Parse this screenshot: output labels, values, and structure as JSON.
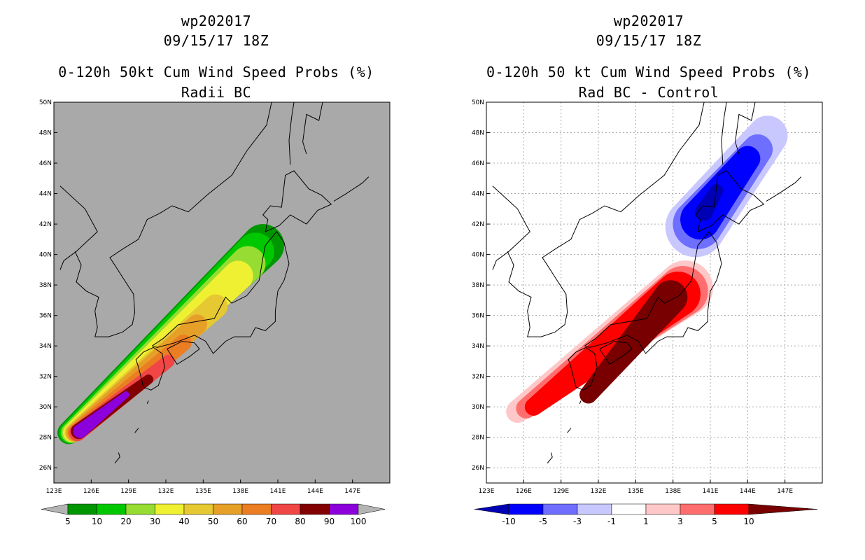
{
  "chart_data": [
    {
      "type": "heatmap",
      "storm_id": "wp202017",
      "datetime": "09/15/17 18Z",
      "title": "0-120h 50kt Cum Wind Speed Probs (%)",
      "subtitle": "Radii BC",
      "background": "#a9a9a9",
      "lon_range": [
        123,
        150
      ],
      "lat_range": [
        25,
        50
      ],
      "x_ticks": [
        "123E",
        "126E",
        "129E",
        "132E",
        "135E",
        "138E",
        "141E",
        "144E",
        "147E"
      ],
      "y_ticks": [
        "26N",
        "28N",
        "30N",
        "32N",
        "34N",
        "36N",
        "38N",
        "40N",
        "42N",
        "44N",
        "46N",
        "48N",
        "50N"
      ],
      "gridlines": false,
      "levels": [
        5,
        10,
        20,
        30,
        40,
        50,
        60,
        70,
        80,
        90,
        100
      ],
      "colors": [
        "#009600",
        "#00c800",
        "#96dc32",
        "#f0f032",
        "#e6c832",
        "#e6a028",
        "#eb7d23",
        "#f04646",
        "#820000",
        "#8c00dc"
      ],
      "contours": [
        {
          "level": 5,
          "color": "#009600",
          "p0": [
            124.2,
            28.3
          ],
          "p1": [
            139.8,
            40.6
          ],
          "w0": 0.9,
          "w1": 1.7
        },
        {
          "level": 10,
          "color": "#00c800",
          "p0": [
            124.3,
            28.3
          ],
          "p1": [
            139.2,
            40.2
          ],
          "w0": 0.85,
          "w1": 1.5
        },
        {
          "level": 20,
          "color": "#96dc32",
          "p0": [
            124.4,
            28.3
          ],
          "p1": [
            138.6,
            39.4
          ],
          "w0": 0.8,
          "w1": 1.4
        },
        {
          "level": 30,
          "color": "#f0f032",
          "p0": [
            124.5,
            28.3
          ],
          "p1": [
            137.8,
            38.6
          ],
          "w0": 0.75,
          "w1": 1.2
        },
        {
          "level": 40,
          "color": "#e6c832",
          "p0": [
            124.6,
            28.3
          ],
          "p1": [
            136.0,
            36.6
          ],
          "w0": 0.72,
          "w1": 0.95
        },
        {
          "level": 50,
          "color": "#e6a028",
          "p0": [
            124.7,
            28.3
          ],
          "p1": [
            134.5,
            35.4
          ],
          "w0": 0.7,
          "w1": 0.8
        },
        {
          "level": 60,
          "color": "#eb7d23",
          "p0": [
            124.8,
            28.3
          ],
          "p1": [
            133.4,
            34.2
          ],
          "w0": 0.68,
          "w1": 0.65
        },
        {
          "level": 70,
          "color": "#f04646",
          "p0": [
            124.9,
            28.3
          ],
          "p1": [
            132.2,
            33.0
          ],
          "w0": 0.66,
          "w1": 0.5
        },
        {
          "level": 80,
          "color": "#820000",
          "p0": [
            125.0,
            28.4
          ],
          "p1": [
            130.6,
            31.8
          ],
          "w0": 0.62,
          "w1": 0.38
        },
        {
          "level": 90,
          "color": "#8c00dc",
          "p0": [
            125.1,
            28.4
          ],
          "p1": [
            128.8,
            30.8
          ],
          "w0": 0.55,
          "w1": 0.25
        }
      ],
      "colorbar_labels": [
        "5",
        "10",
        "20",
        "30",
        "40",
        "50",
        "60",
        "70",
        "80",
        "90",
        "100"
      ]
    },
    {
      "type": "heatmap",
      "storm_id": "wp202017",
      "datetime": "09/15/17 18Z",
      "title": "0-120h 50 kt Cum Wind Speed Probs (%)",
      "subtitle": "Rad BC - Control",
      "background": "#ffffff",
      "lon_range": [
        123,
        150
      ],
      "lat_range": [
        25,
        50
      ],
      "x_ticks": [
        "123E",
        "126E",
        "129E",
        "132E",
        "135E",
        "138E",
        "141E",
        "144E",
        "147E"
      ],
      "y_ticks": [
        "26N",
        "28N",
        "30N",
        "32N",
        "34N",
        "36N",
        "38N",
        "40N",
        "42N",
        "44N",
        "46N",
        "48N",
        "50N"
      ],
      "gridlines": true,
      "levels": [
        -10,
        -5,
        -3,
        -1,
        1,
        3,
        5,
        10
      ],
      "colors": [
        "#0000b4",
        "#0000ff",
        "#6e6eff",
        "#c8c8ff",
        "#ffffff",
        "#ffc8c8",
        "#ff6e6e",
        "#ff0000",
        "#780000"
      ],
      "contours": [
        {
          "level": 1,
          "color": "#ffc8c8",
          "p0": [
            125.5,
            29.7
          ],
          "p1": [
            139.0,
            37.8
          ],
          "w0": 0.9,
          "w1": 2.2
        },
        {
          "level": 3,
          "color": "#ff6e6e",
          "p0": [
            126.2,
            29.9
          ],
          "p1": [
            138.8,
            37.6
          ],
          "w0": 0.8,
          "w1": 2.0
        },
        {
          "level": 5,
          "color": "#ff0000",
          "p0": [
            126.8,
            30.0
          ],
          "p1": [
            138.4,
            37.4
          ],
          "w0": 0.7,
          "w1": 1.8
        },
        {
          "level": 10,
          "color": "#780000",
          "p0": [
            131.2,
            30.8
          ],
          "p1": [
            137.8,
            37.2
          ],
          "w0": 0.7,
          "w1": 1.35
        },
        {
          "level": -1,
          "color": "#c8c8ff",
          "p0": [
            139.8,
            41.8
          ],
          "p1": [
            145.6,
            47.8
          ],
          "w0": 2.4,
          "w1": 1.6
        },
        {
          "level": -3,
          "color": "#6e6eff",
          "p0": [
            140.0,
            42.0
          ],
          "p1": [
            144.8,
            46.9
          ],
          "w0": 2.0,
          "w1": 1.2
        },
        {
          "level": -5,
          "color": "#0000ff",
          "p0": [
            140.2,
            42.3
          ],
          "p1": [
            144.0,
            46.3
          ],
          "w0": 1.6,
          "w1": 1.0
        },
        {
          "level": -10,
          "color": "#0000b4",
          "p0": [
            140.5,
            42.8
          ],
          "p1": [
            141.5,
            44.2
          ],
          "w0": 0.7,
          "w1": 0.5
        }
      ],
      "colorbar_labels": [
        "-10",
        "-5",
        "-3",
        "-1",
        "1",
        "3",
        "5",
        "10"
      ]
    }
  ]
}
